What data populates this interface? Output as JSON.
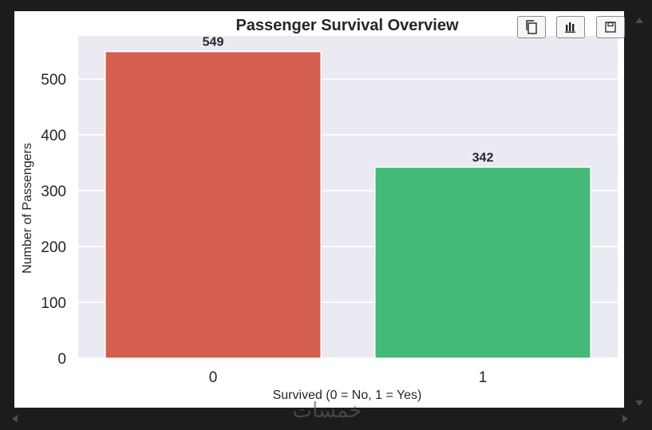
{
  "chart_data": {
    "type": "bar",
    "title": "Passenger Survival Overview",
    "xlabel": "Survived (0 = No, 1 = Yes)",
    "ylabel": "Number of Passengers",
    "categories": [
      "0",
      "1"
    ],
    "values": [
      549,
      342
    ],
    "data_labels": [
      "549",
      "342"
    ],
    "bar_colors": [
      "#d45f4f",
      "#45b977"
    ],
    "yticks": [
      0,
      100,
      200,
      300,
      400,
      500
    ],
    "ylim": [
      0,
      577
    ],
    "grid": true,
    "background": "#eaeaf2",
    "legend": "none"
  },
  "toolbar": {
    "buttons": [
      {
        "name": "copy-button",
        "icon": "copy-icon"
      },
      {
        "name": "chart-button",
        "icon": "bar-chart-icon"
      },
      {
        "name": "save-button",
        "icon": "save-icon"
      }
    ]
  },
  "watermark": {
    "text": "خمسات"
  }
}
